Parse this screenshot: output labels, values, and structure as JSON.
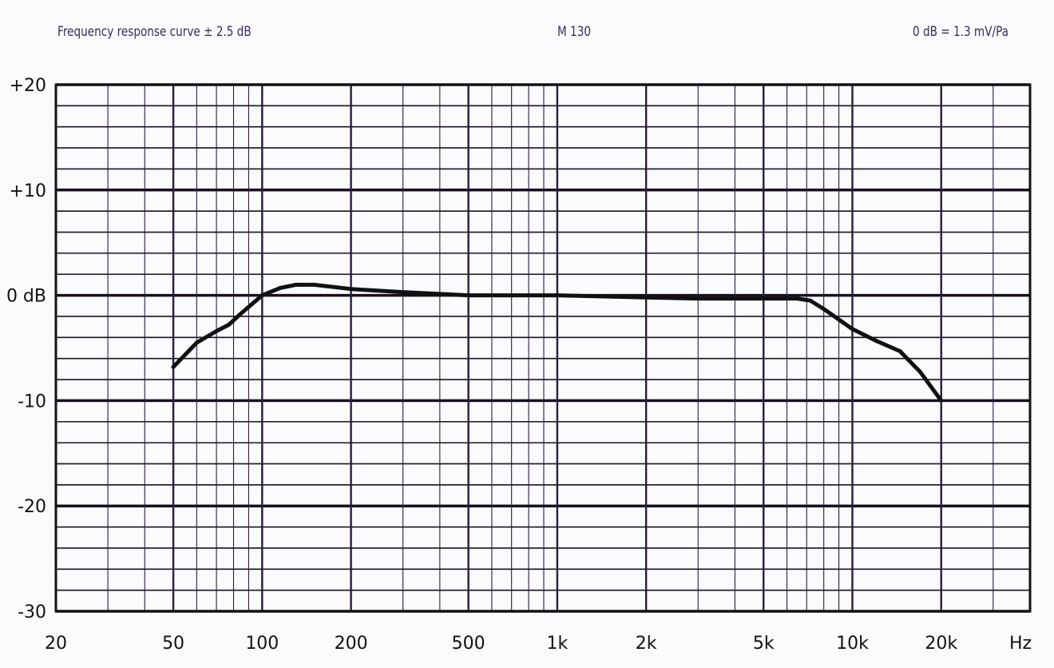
{
  "header": {
    "left": "Frequency response curve ± 2.5 dB",
    "center": "M 130",
    "right": "0 dB = 1.3 mV/Pa"
  },
  "chart_data": {
    "type": "line",
    "title": "Frequency response curve ± 2.5 dB",
    "xlabel": "Hz",
    "ylabel": "",
    "xscale": "log",
    "xlim": [
      20,
      40000
    ],
    "ylim": [
      -30,
      20
    ],
    "grid": true,
    "x_ticks": [
      {
        "v": 20,
        "label": "20"
      },
      {
        "v": 50,
        "label": "50"
      },
      {
        "v": 100,
        "label": "100"
      },
      {
        "v": 200,
        "label": "200"
      },
      {
        "v": 500,
        "label": "500"
      },
      {
        "v": 1000,
        "label": "1k"
      },
      {
        "v": 2000,
        "label": "2k"
      },
      {
        "v": 5000,
        "label": "5k"
      },
      {
        "v": 10000,
        "label": "10k"
      },
      {
        "v": 20000,
        "label": "20k"
      }
    ],
    "x_unit_label": "Hz",
    "y_ticks": [
      {
        "v": 20,
        "label": "+20"
      },
      {
        "v": 10,
        "label": "+10"
      },
      {
        "v": 0,
        "label": "0 dB"
      },
      {
        "v": -10,
        "label": "-10"
      },
      {
        "v": -20,
        "label": "-20"
      },
      {
        "v": -30,
        "label": "-30"
      }
    ],
    "series": [
      {
        "color": "#111111",
        "x": [
          50,
          55,
          60,
          70,
          77,
          85,
          100,
          115,
          130,
          150,
          200,
          300,
          500,
          1000,
          2000,
          3000,
          5000,
          6500,
          7200,
          8000,
          9000,
          10000,
          12000,
          14500,
          17000,
          20000
        ],
        "y": [
          -6.8,
          -5.6,
          -4.5,
          -3.4,
          -2.8,
          -1.7,
          0,
          0.7,
          1.0,
          1.0,
          0.6,
          0.3,
          0,
          0,
          -0.2,
          -0.3,
          -0.3,
          -0.3,
          -0.5,
          -1.3,
          -2.3,
          -3.2,
          -4.3,
          -5.3,
          -7.3,
          -10
        ]
      }
    ]
  }
}
